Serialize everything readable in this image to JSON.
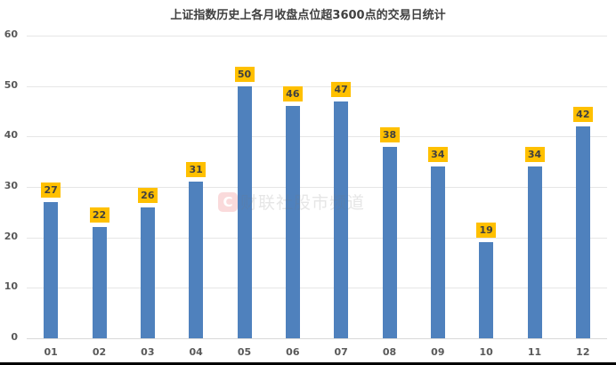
{
  "chart_data": {
    "type": "bar",
    "title": "上证指数历史上各月收盘点位超3600点的交易日统计",
    "xlabel": "",
    "ylabel": "",
    "categories": [
      "01",
      "02",
      "03",
      "04",
      "05",
      "06",
      "07",
      "08",
      "09",
      "10",
      "11",
      "12"
    ],
    "values": [
      27,
      22,
      26,
      31,
      50,
      46,
      47,
      38,
      34,
      19,
      34,
      42
    ],
    "ylim": [
      0,
      60
    ],
    "yticks": [
      0,
      10,
      20,
      30,
      40,
      50,
      60
    ],
    "grid": true,
    "legend": null,
    "bar_color": "#4f81bd",
    "label_bg_color": "#ffc000"
  },
  "watermark": {
    "logo": "C",
    "text": "财联社股市频道"
  }
}
